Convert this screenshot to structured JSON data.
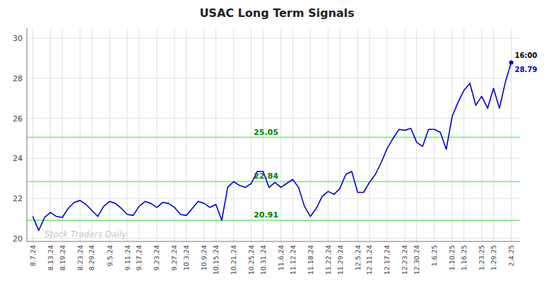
{
  "chart_data": {
    "type": "line",
    "title": "USAC Long Term Signals",
    "categories": [
      "8.7.24",
      null,
      null,
      "8.13.24",
      null,
      "8.19.24",
      null,
      null,
      "8.23.24",
      null,
      "8.29.24",
      null,
      null,
      "9.5.24",
      null,
      null,
      "9.11.24",
      null,
      "9.17.24",
      null,
      null,
      "9.23.24",
      null,
      null,
      "9.27.24",
      null,
      "10.3.24",
      null,
      null,
      "10.9.24",
      null,
      "10.15.24",
      null,
      null,
      "10.21.24",
      null,
      null,
      "10.25.24",
      null,
      "10.31.24",
      null,
      null,
      "11.6.24",
      null,
      "11.12.24",
      null,
      null,
      "11.18.24",
      null,
      null,
      "11.22.24",
      null,
      "11.29.24",
      null,
      null,
      "12.5.24",
      null,
      "12.11.24",
      null,
      null,
      "12.17.24",
      null,
      null,
      "12.23.24",
      null,
      "12.30.24",
      null,
      null,
      "1.6.25",
      null,
      null,
      "1.10.25",
      null,
      "1.16.25",
      null,
      null,
      "1.23.25",
      null,
      "1.29.25",
      null,
      null,
      "2.4.25"
    ],
    "series": [
      {
        "color": "#0000cc",
        "values": [
          21.1,
          20.4,
          21.05,
          21.3,
          21.1,
          21.05,
          21.5,
          21.8,
          21.9,
          21.7,
          21.4,
          21.1,
          21.6,
          21.85,
          21.75,
          21.5,
          21.2,
          21.15,
          21.6,
          21.85,
          21.75,
          21.55,
          21.8,
          21.75,
          21.55,
          21.2,
          21.15,
          21.5,
          21.85,
          21.75,
          21.55,
          21.7,
          20.91,
          22.55,
          22.84,
          22.65,
          22.55,
          22.75,
          23.35,
          23.35,
          22.55,
          22.8,
          22.55,
          22.75,
          22.95,
          22.55,
          21.6,
          21.1,
          21.5,
          22.1,
          22.35,
          22.2,
          22.5,
          23.2,
          23.35,
          22.3,
          22.3,
          22.8,
          23.2,
          23.8,
          24.5,
          25.0,
          25.45,
          25.4,
          25.5,
          24.8,
          24.6,
          25.45,
          25.45,
          25.3,
          24.45,
          26.1,
          26.8,
          27.4,
          27.75,
          26.65,
          27.1,
          26.5,
          27.5,
          26.5,
          27.8,
          28.79
        ]
      }
    ],
    "hlines": [
      {
        "y": 20.91,
        "label": "20.91",
        "color": "#90ee90"
      },
      {
        "y": 22.84,
        "label": "22.84",
        "color": "#90ee90"
      },
      {
        "y": 25.05,
        "label": "25.05",
        "color": "#90ee90"
      }
    ],
    "annotations": [
      {
        "label": "16:00"
      },
      {
        "label": "28.79",
        "y": 28.79,
        "color": "#0000cc"
      }
    ],
    "watermark": "Stock Traders Daily",
    "ylim": [
      19.85,
      30.5
    ],
    "yticks": [
      20,
      22,
      24,
      26,
      28,
      30
    ],
    "grid": true
  }
}
